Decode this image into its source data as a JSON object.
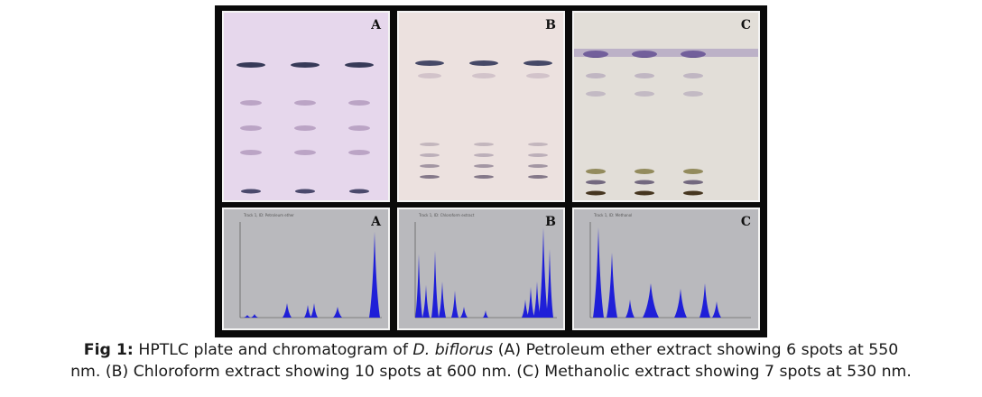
{
  "figure": {
    "panels": [
      {
        "letter": "A",
        "chrom_title": "Track 1, ID: Petroleum ether"
      },
      {
        "letter": "B",
        "chrom_title": "Track 1, ID: Chloroform extract"
      },
      {
        "letter": "C",
        "chrom_title": "Track 1, ID: Methanol"
      }
    ],
    "caption": {
      "label": "Fig 1:",
      "text_before": " HPTLC plate and chromatogram of ",
      "species": "D. biflorus",
      "text_line1_after": " (A) Petroleum ether extract showing 6 spots at 550",
      "text_line2": "nm. (B) Chloroform extract showing 10 spots at 600 nm. (C) Methanolic extract showing 7 spots at 530 nm."
    }
  },
  "colors": {
    "plate_a": "#e6d7ec",
    "plate_b": "#ece1df",
    "plate_c": "#e2ded8",
    "band": "#3e3f72",
    "peak": "#1f1fd8",
    "chrom_bg": "#b9b9bd"
  }
}
